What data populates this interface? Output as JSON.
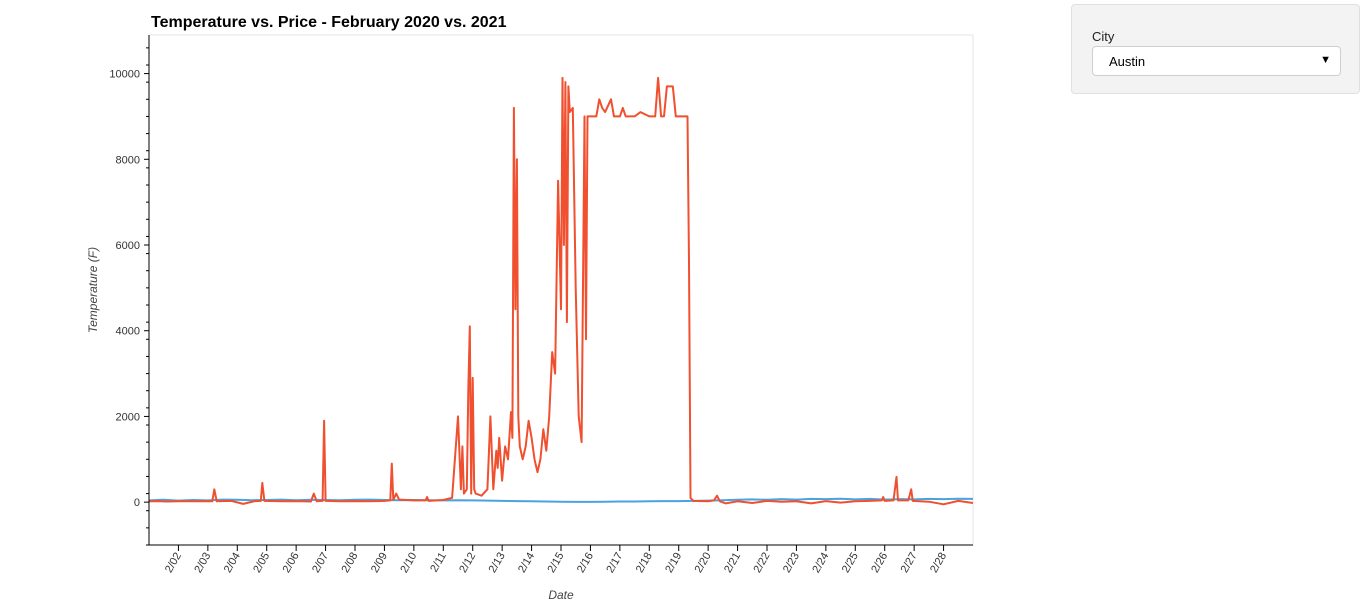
{
  "widget": {
    "label": "City",
    "selected": "Austin"
  },
  "colors": {
    "temperature": "#4aa3df",
    "price": "#f0502f",
    "frame": "#e5e5e5",
    "axis": "#000000"
  },
  "chart_data": {
    "type": "line",
    "title": "Temperature vs. Price - February 2020 vs. 2021",
    "xlabel": "Date",
    "ylabel": "Temperature (F)",
    "xlim": [
      1.0,
      29.0
    ],
    "ylim": [
      -1000,
      10900
    ],
    "y_ticks": [
      0,
      2000,
      4000,
      6000,
      8000,
      10000
    ],
    "x_ticks": [
      {
        "x": 2,
        "label": "2/02"
      },
      {
        "x": 3,
        "label": "2/03"
      },
      {
        "x": 4,
        "label": "2/04"
      },
      {
        "x": 5,
        "label": "2/05"
      },
      {
        "x": 6,
        "label": "2/06"
      },
      {
        "x": 7,
        "label": "2/07"
      },
      {
        "x": 8,
        "label": "2/08"
      },
      {
        "x": 9,
        "label": "2/09"
      },
      {
        "x": 10,
        "label": "2/10"
      },
      {
        "x": 11,
        "label": "2/11"
      },
      {
        "x": 12,
        "label": "2/12"
      },
      {
        "x": 13,
        "label": "2/13"
      },
      {
        "x": 14,
        "label": "2/14"
      },
      {
        "x": 15,
        "label": "2/15"
      },
      {
        "x": 16,
        "label": "2/16"
      },
      {
        "x": 17,
        "label": "2/17"
      },
      {
        "x": 18,
        "label": "2/18"
      },
      {
        "x": 19,
        "label": "2/19"
      },
      {
        "x": 20,
        "label": "2/20"
      },
      {
        "x": 21,
        "label": "2/21"
      },
      {
        "x": 22,
        "label": "2/22"
      },
      {
        "x": 23,
        "label": "2/23"
      },
      {
        "x": 24,
        "label": "2/24"
      },
      {
        "x": 25,
        "label": "2/25"
      },
      {
        "x": 26,
        "label": "2/26"
      },
      {
        "x": 27,
        "label": "2/27"
      },
      {
        "x": 28,
        "label": "2/28"
      }
    ],
    "series": [
      {
        "color": "#4aa3df",
        "points": [
          [
            1.0,
            40
          ],
          [
            1.5,
            55
          ],
          [
            2.0,
            35
          ],
          [
            2.5,
            50
          ],
          [
            3.0,
            40
          ],
          [
            3.5,
            60
          ],
          [
            4.0,
            55
          ],
          [
            4.5,
            45
          ],
          [
            5.0,
            50
          ],
          [
            5.5,
            60
          ],
          [
            6.0,
            45
          ],
          [
            6.5,
            55
          ],
          [
            7.0,
            50
          ],
          [
            7.5,
            45
          ],
          [
            8.0,
            55
          ],
          [
            8.5,
            60
          ],
          [
            9.0,
            50
          ],
          [
            9.5,
            45
          ],
          [
            10.0,
            50
          ],
          [
            10.5,
            45
          ],
          [
            11.0,
            40
          ],
          [
            11.5,
            45
          ],
          [
            12.0,
            40
          ],
          [
            12.5,
            35
          ],
          [
            13.0,
            30
          ],
          [
            13.5,
            25
          ],
          [
            14.0,
            20
          ],
          [
            14.5,
            15
          ],
          [
            15.0,
            10
          ],
          [
            15.5,
            5
          ],
          [
            16.0,
            5
          ],
          [
            16.5,
            10
          ],
          [
            17.0,
            15
          ],
          [
            17.5,
            15
          ],
          [
            18.0,
            20
          ],
          [
            18.5,
            25
          ],
          [
            19.0,
            25
          ],
          [
            19.5,
            30
          ],
          [
            20.0,
            35
          ],
          [
            20.5,
            45
          ],
          [
            21.0,
            55
          ],
          [
            21.5,
            65
          ],
          [
            22.0,
            55
          ],
          [
            22.5,
            70
          ],
          [
            23.0,
            60
          ],
          [
            23.5,
            75
          ],
          [
            24.0,
            70
          ],
          [
            24.5,
            80
          ],
          [
            25.0,
            65
          ],
          [
            25.5,
            75
          ],
          [
            26.0,
            60
          ],
          [
            26.5,
            70
          ],
          [
            27.0,
            65
          ],
          [
            27.5,
            75
          ],
          [
            28.0,
            70
          ],
          [
            28.5,
            80
          ],
          [
            29.0,
            75
          ]
        ]
      },
      {
        "color": "#f0502f",
        "points": [
          [
            1.0,
            20
          ],
          [
            1.3,
            25
          ],
          [
            1.6,
            15
          ],
          [
            2.0,
            20
          ],
          [
            2.5,
            20
          ],
          [
            3.0,
            25
          ],
          [
            3.15,
            20
          ],
          [
            3.22,
            300
          ],
          [
            3.3,
            20
          ],
          [
            3.8,
            30
          ],
          [
            4.2,
            -40
          ],
          [
            4.6,
            25
          ],
          [
            4.8,
            30
          ],
          [
            4.85,
            450
          ],
          [
            4.92,
            30
          ],
          [
            5.5,
            20
          ],
          [
            6.0,
            25
          ],
          [
            6.5,
            15
          ],
          [
            6.6,
            200
          ],
          [
            6.7,
            20
          ],
          [
            6.9,
            30
          ],
          [
            6.95,
            1900
          ],
          [
            7.0,
            30
          ],
          [
            7.5,
            20
          ],
          [
            8.0,
            25
          ],
          [
            8.5,
            20
          ],
          [
            9.0,
            30
          ],
          [
            9.2,
            40
          ],
          [
            9.25,
            900
          ],
          [
            9.3,
            50
          ],
          [
            9.4,
            200
          ],
          [
            9.5,
            60
          ],
          [
            10.0,
            40
          ],
          [
            10.4,
            40
          ],
          [
            10.45,
            120
          ],
          [
            10.5,
            30
          ],
          [
            11.0,
            50
          ],
          [
            11.3,
            100
          ],
          [
            11.5,
            2000
          ],
          [
            11.6,
            300
          ],
          [
            11.65,
            1300
          ],
          [
            11.7,
            200
          ],
          [
            11.8,
            300
          ],
          [
            11.85,
            2600
          ],
          [
            11.9,
            4100
          ],
          [
            11.95,
            200
          ],
          [
            12.0,
            2900
          ],
          [
            12.05,
            300
          ],
          [
            12.1,
            200
          ],
          [
            12.3,
            150
          ],
          [
            12.5,
            300
          ],
          [
            12.6,
            2000
          ],
          [
            12.7,
            300
          ],
          [
            12.8,
            1200
          ],
          [
            12.85,
            800
          ],
          [
            12.9,
            1500
          ],
          [
            13.0,
            500
          ],
          [
            13.1,
            1300
          ],
          [
            13.2,
            1000
          ],
          [
            13.3,
            2100
          ],
          [
            13.35,
            1500
          ],
          [
            13.4,
            9200
          ],
          [
            13.45,
            4500
          ],
          [
            13.5,
            8000
          ],
          [
            13.55,
            2000
          ],
          [
            13.6,
            1300
          ],
          [
            13.7,
            1000
          ],
          [
            13.8,
            1300
          ],
          [
            13.9,
            1900
          ],
          [
            14.0,
            1500
          ],
          [
            14.1,
            1000
          ],
          [
            14.2,
            700
          ],
          [
            14.3,
            1000
          ],
          [
            14.4,
            1700
          ],
          [
            14.5,
            1200
          ],
          [
            14.6,
            2000
          ],
          [
            14.7,
            3500
          ],
          [
            14.8,
            3000
          ],
          [
            14.9,
            7500
          ],
          [
            15.0,
            4500
          ],
          [
            15.05,
            9900
          ],
          [
            15.1,
            6000
          ],
          [
            15.15,
            9800
          ],
          [
            15.2,
            4200
          ],
          [
            15.25,
            9700
          ],
          [
            15.3,
            9100
          ],
          [
            15.4,
            9200
          ],
          [
            15.5,
            5000
          ],
          [
            15.6,
            2000
          ],
          [
            15.7,
            1400
          ],
          [
            15.8,
            9000
          ],
          [
            15.85,
            3800
          ],
          [
            15.9,
            9000
          ],
          [
            16.0,
            9000
          ],
          [
            16.2,
            9000
          ],
          [
            16.3,
            9400
          ],
          [
            16.4,
            9200
          ],
          [
            16.5,
            9100
          ],
          [
            16.7,
            9400
          ],
          [
            16.8,
            9000
          ],
          [
            17.0,
            9000
          ],
          [
            17.1,
            9200
          ],
          [
            17.2,
            9000
          ],
          [
            17.5,
            9000
          ],
          [
            17.7,
            9100
          ],
          [
            18.0,
            9000
          ],
          [
            18.2,
            9000
          ],
          [
            18.3,
            9900
          ],
          [
            18.4,
            9000
          ],
          [
            18.5,
            9000
          ],
          [
            18.6,
            9700
          ],
          [
            18.8,
            9700
          ],
          [
            18.9,
            9000
          ],
          [
            19.1,
            9000
          ],
          [
            19.3,
            9000
          ],
          [
            19.35,
            5600
          ],
          [
            19.4,
            100
          ],
          [
            19.5,
            30
          ],
          [
            20.0,
            20
          ],
          [
            20.2,
            40
          ],
          [
            20.3,
            150
          ],
          [
            20.4,
            20
          ],
          [
            20.6,
            -30
          ],
          [
            21.0,
            20
          ],
          [
            21.5,
            -20
          ],
          [
            22.0,
            30
          ],
          [
            22.5,
            10
          ],
          [
            23.0,
            20
          ],
          [
            23.5,
            -30
          ],
          [
            24.0,
            25
          ],
          [
            24.5,
            -10
          ],
          [
            25.0,
            20
          ],
          [
            25.5,
            30
          ],
          [
            25.9,
            40
          ],
          [
            25.95,
            120
          ],
          [
            26.0,
            30
          ],
          [
            26.3,
            40
          ],
          [
            26.4,
            590
          ],
          [
            26.45,
            40
          ],
          [
            26.8,
            40
          ],
          [
            26.9,
            300
          ],
          [
            26.95,
            30
          ],
          [
            27.5,
            10
          ],
          [
            28.0,
            -50
          ],
          [
            28.5,
            30
          ],
          [
            29.0,
            -20
          ]
        ]
      }
    ]
  }
}
